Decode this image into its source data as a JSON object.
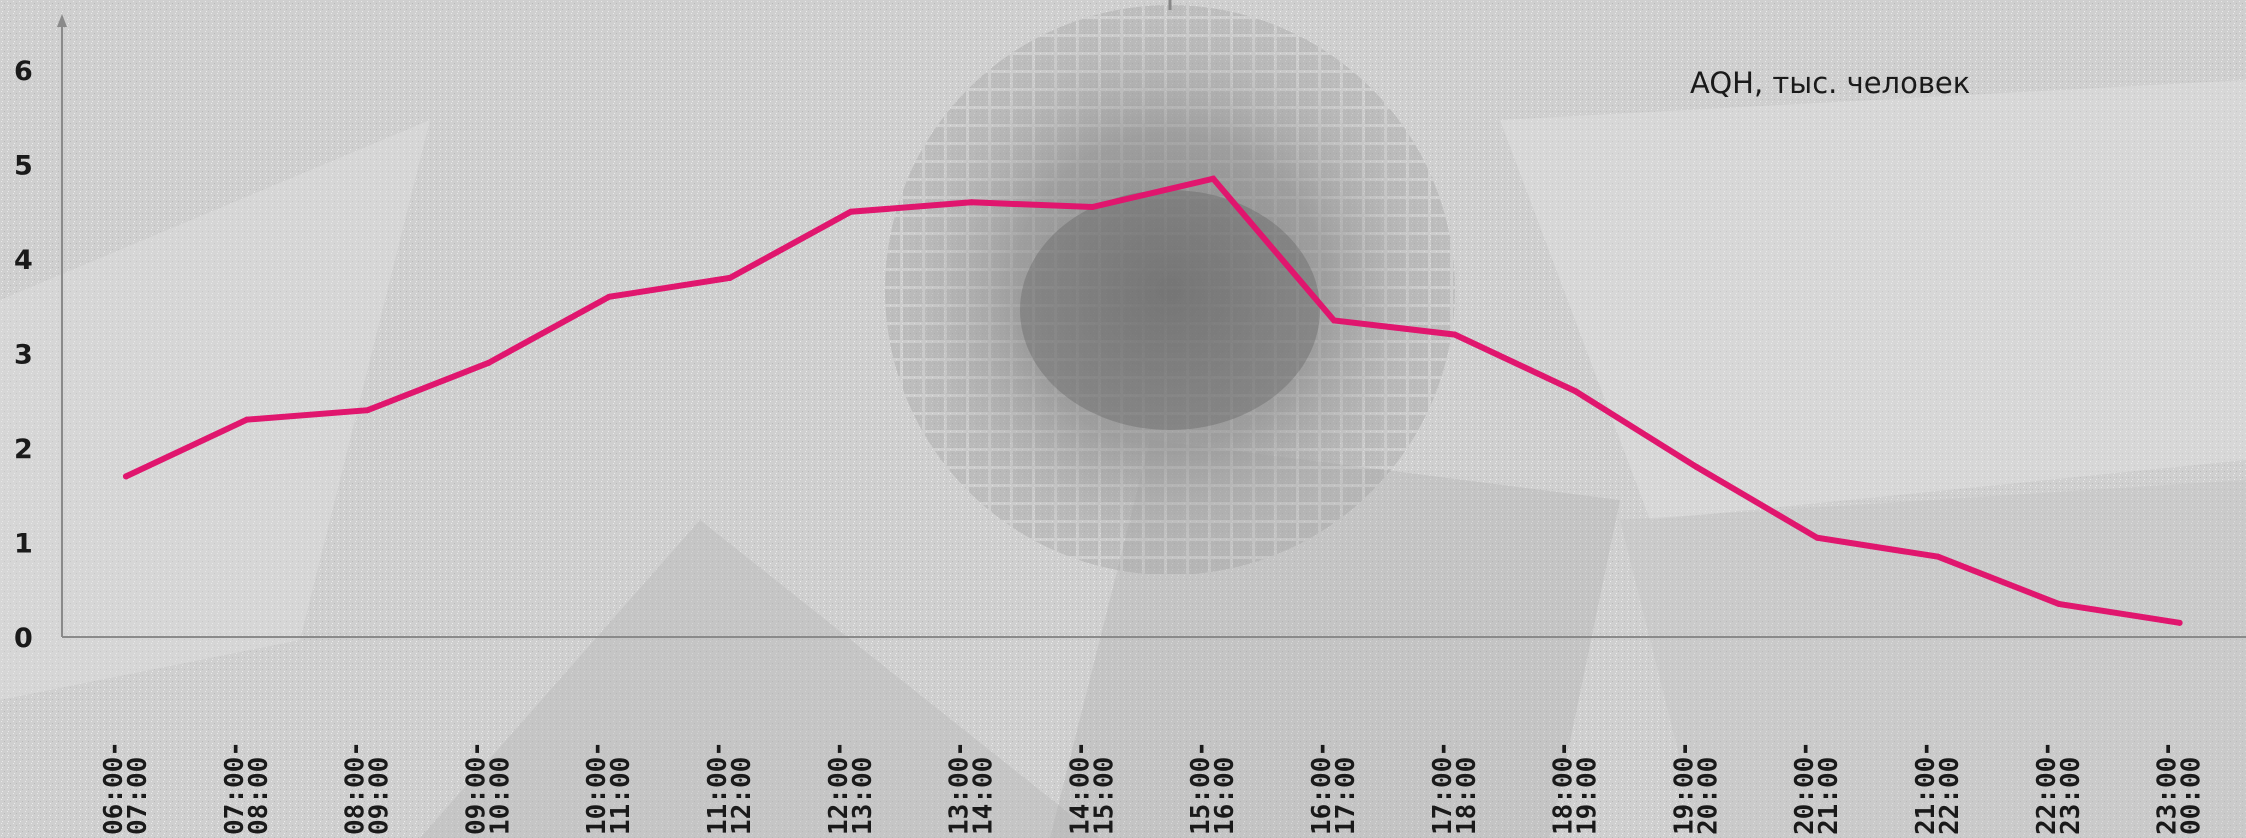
{
  "chart_data": {
    "type": "line",
    "title": "",
    "xlabel": "",
    "ylabel": "",
    "ylim": [
      0,
      6.5
    ],
    "yticks": [
      "0",
      "1",
      "2",
      "3",
      "4",
      "5",
      "6"
    ],
    "categories": [
      [
        "06:00-",
        "07:00"
      ],
      [
        "07:00-",
        "08:00"
      ],
      [
        "08:00-",
        "09:00"
      ],
      [
        "09:00-",
        "10:00"
      ],
      [
        "10:00-",
        "11:00"
      ],
      [
        "11:00-",
        "12:00"
      ],
      [
        "12:00-",
        "13:00"
      ],
      [
        "13:00-",
        "14:00"
      ],
      [
        "14:00-",
        "15:00"
      ],
      [
        "15:00-",
        "16:00"
      ],
      [
        "16:00-",
        "17:00"
      ],
      [
        "17:00-",
        "18:00"
      ],
      [
        "18:00-",
        "19:00"
      ],
      [
        "19:00-",
        "20:00"
      ],
      [
        "20:00-",
        "21:00"
      ],
      [
        "21:00-",
        "22:00"
      ],
      [
        "22:00-",
        "23:00"
      ],
      [
        "23:00-",
        "00:00"
      ]
    ],
    "series": [
      {
        "name": "AQH, тыс. человек",
        "color": "#e0166e",
        "values": [
          1.7,
          2.3,
          2.4,
          2.9,
          3.6,
          3.8,
          4.5,
          4.6,
          4.55,
          4.85,
          3.35,
          3.2,
          2.6,
          1.8,
          1.05,
          0.85,
          0.35,
          0.15
        ]
      }
    ],
    "grid": false,
    "legend_position": "top-right"
  }
}
